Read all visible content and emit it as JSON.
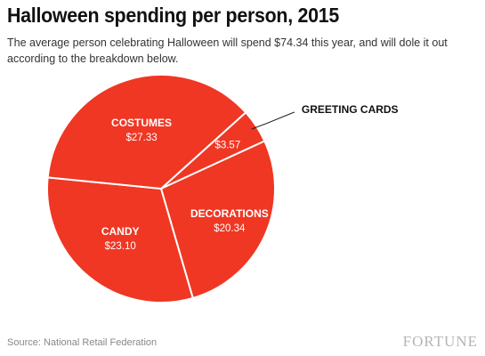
{
  "title": "Halloween spending per person, 2015",
  "subtitle": "The average person celebrating Halloween will spend $74.34 this year, and will dole it out according to the breakdown below.",
  "source": "Source: National Retail Federation",
  "brand": "FORTUNE",
  "colors": {
    "slice": "#ef3724",
    "slice_border": "#ffffff",
    "callout_line": "#111111"
  },
  "chart_data": {
    "type": "pie",
    "title": "Halloween spending per person, 2015",
    "unit": "USD",
    "total": 74.34,
    "slices": [
      {
        "label": "GREETING CARDS",
        "value": 3.57,
        "display": "$3.57",
        "label_outside": true
      },
      {
        "label": "DECORATIONS",
        "value": 20.34,
        "display": "$20.34"
      },
      {
        "label": "CANDY",
        "value": 23.1,
        "display": "$23.10"
      },
      {
        "label": "COSTUMES",
        "value": 27.33,
        "display": "$27.33"
      }
    ]
  }
}
